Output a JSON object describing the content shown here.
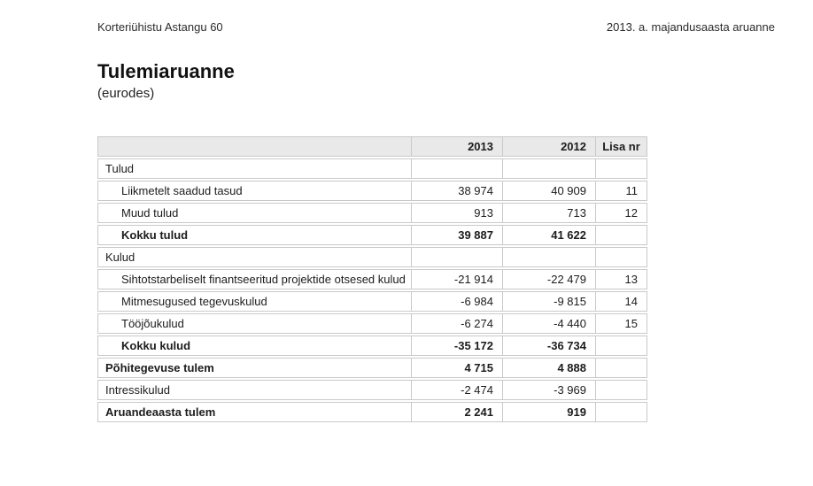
{
  "page": {
    "header_left": "Korteriühistu Astangu 60",
    "header_right": "2013. a. majandusaasta aruanne",
    "title": "Tulemiaruanne",
    "subtitle": "(eurodes)"
  },
  "table": {
    "columns": [
      "",
      "2013",
      "2012",
      "Lisa nr"
    ],
    "rows": [
      {
        "label": "Tulud",
        "v2013": "",
        "v2012": "",
        "lisa": "",
        "indent": false,
        "bold": false
      },
      {
        "label": "Liikmetelt saadud tasud",
        "v2013": "38 974",
        "v2012": "40 909",
        "lisa": "11",
        "indent": true,
        "bold": false
      },
      {
        "label": "Muud tulud",
        "v2013": "913",
        "v2012": "713",
        "lisa": "12",
        "indent": true,
        "bold": false
      },
      {
        "label": "Kokku tulud",
        "v2013": "39 887",
        "v2012": "41 622",
        "lisa": "",
        "indent": true,
        "bold": true
      },
      {
        "label": "Kulud",
        "v2013": "",
        "v2012": "",
        "lisa": "",
        "indent": false,
        "bold": false
      },
      {
        "label": "Sihtotstarbeliselt finantseeritud projektide otsesed kulud",
        "v2013": "-21 914",
        "v2012": "-22 479",
        "lisa": "13",
        "indent": true,
        "bold": false
      },
      {
        "label": "Mitmesugused tegevuskulud",
        "v2013": "-6 984",
        "v2012": "-9 815",
        "lisa": "14",
        "indent": true,
        "bold": false
      },
      {
        "label": "Tööjõukulud",
        "v2013": "-6 274",
        "v2012": "-4 440",
        "lisa": "15",
        "indent": true,
        "bold": false
      },
      {
        "label": "Kokku kulud",
        "v2013": "-35 172",
        "v2012": "-36 734",
        "lisa": "",
        "indent": true,
        "bold": true
      },
      {
        "label": "Põhitegevuse tulem",
        "v2013": "4 715",
        "v2012": "4 888",
        "lisa": "",
        "indent": false,
        "bold": true
      },
      {
        "label": "Intressikulud",
        "v2013": "-2 474",
        "v2012": "-3 969",
        "lisa": "",
        "indent": false,
        "bold": false
      },
      {
        "label": "Aruandeaasta tulem",
        "v2013": "2 241",
        "v2012": "919",
        "lisa": "",
        "indent": false,
        "bold": true
      }
    ]
  },
  "colors": {
    "header_bg": "#e9e9e9",
    "border": "#c9c9c9",
    "text": "#1c1c1c"
  }
}
